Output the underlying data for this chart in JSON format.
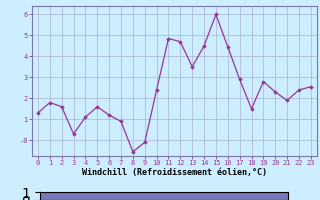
{
  "x": [
    0,
    1,
    2,
    3,
    4,
    5,
    6,
    7,
    8,
    9,
    10,
    11,
    12,
    13,
    14,
    15,
    16,
    17,
    18,
    19,
    20,
    21,
    22,
    23
  ],
  "y": [
    1.3,
    1.8,
    1.6,
    0.3,
    1.1,
    1.6,
    1.2,
    0.9,
    -0.55,
    -0.1,
    2.4,
    4.85,
    4.7,
    3.5,
    4.5,
    6.0,
    4.45,
    2.9,
    1.5,
    2.8,
    2.3,
    1.9,
    2.4,
    2.55
  ],
  "line_color": "#993399",
  "marker": "D",
  "markersize": 1.8,
  "linewidth": 0.9,
  "xlabel": "Windchill (Refroidissement éolien,°C)",
  "xlabel_fontsize": 6.0,
  "bg_color": "#cceeff",
  "grid_color": "#aab4cc",
  "ytick_labels": [
    "6",
    "5",
    "4",
    "3",
    "2",
    "1",
    "-0"
  ],
  "ytick_vals": [
    6,
    5,
    4,
    3,
    2,
    1,
    0
  ],
  "ylim": [
    -0.75,
    6.4
  ],
  "xlim": [
    -0.5,
    23.5
  ],
  "xtick_vals": [
    0,
    1,
    2,
    3,
    4,
    5,
    6,
    7,
    8,
    9,
    10,
    11,
    12,
    13,
    14,
    15,
    16,
    17,
    18,
    19,
    20,
    21,
    22,
    23
  ],
  "tick_fontsize": 5.0,
  "spine_color": "#7777aa",
  "bottom_bar_color": "#7777bb"
}
